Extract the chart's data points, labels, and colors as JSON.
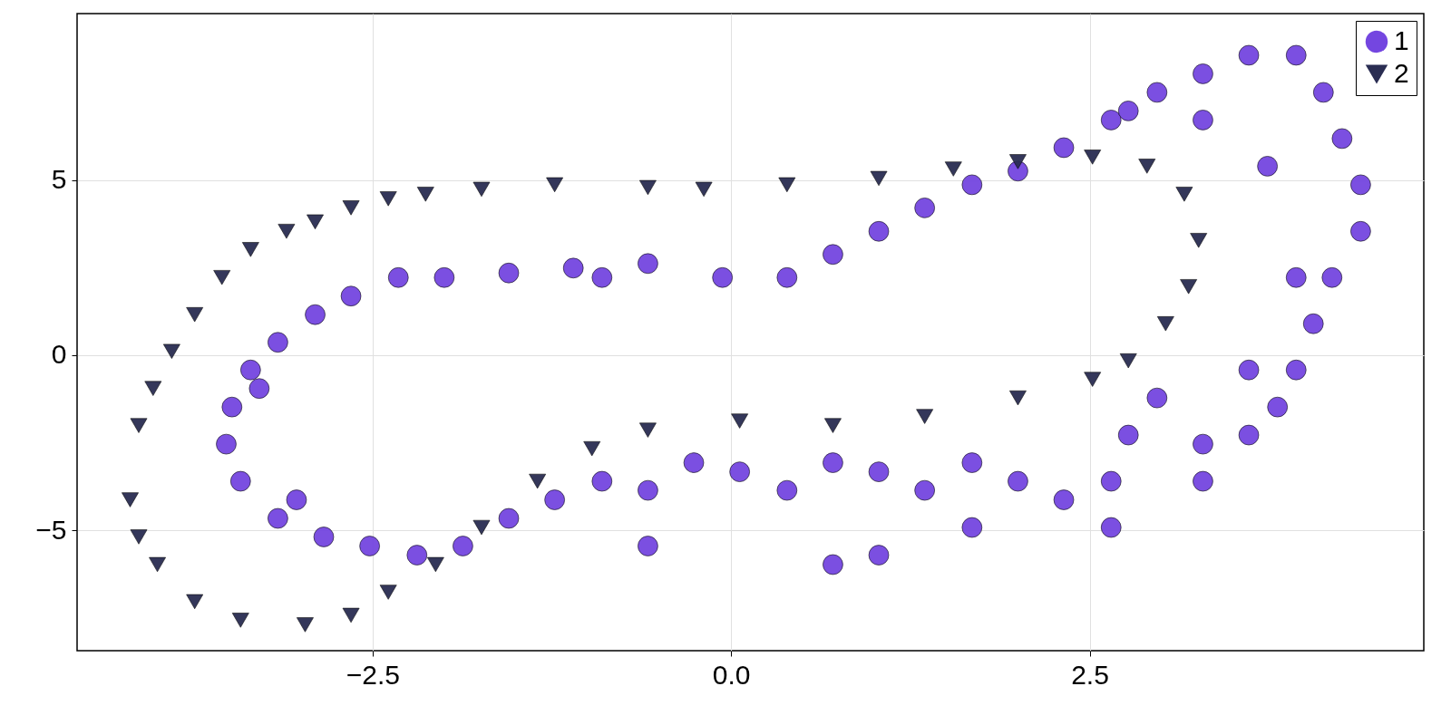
{
  "chart_data": {
    "type": "scatter",
    "xlim": [
      -4.56,
      4.83
    ],
    "ylim": [
      -8.44,
      9.76
    ],
    "xticks": [
      {
        "value": -2.5,
        "label": "−2.5"
      },
      {
        "value": 0,
        "label": "0.0"
      },
      {
        "value": 2.5,
        "label": "2.5"
      }
    ],
    "yticks": [
      {
        "value": -5,
        "label": "−5"
      },
      0,
      5
    ],
    "grid": true,
    "legend": "top right",
    "series": [
      {
        "name": "1",
        "color": "#7446e0",
        "marker": "circle",
        "x": [
          -3.35,
          -3.16,
          -2.9,
          -2.65,
          -2.32,
          -2.0,
          -1.55,
          -1.1,
          -0.58,
          -0.06,
          0.39,
          0.71,
          1.03,
          1.35,
          1.68,
          2.0,
          2.32,
          2.65,
          2.97,
          3.29,
          3.61,
          3.94,
          4.13,
          4.26,
          4.39,
          4.39,
          4.19,
          4.06,
          3.94,
          3.81,
          3.61,
          3.29,
          2.97,
          2.77,
          2.65,
          2.32,
          2.0,
          1.68,
          1.35,
          1.03,
          0.71,
          0.39,
          0.06,
          -0.26,
          -0.58,
          -0.9,
          -1.23,
          -1.55,
          -1.87,
          -2.19,
          -2.52,
          -2.84,
          -3.16,
          -3.42,
          -3.52,
          -3.48,
          -3.29,
          -3.03,
          -0.58,
          0.71,
          1.68,
          2.65,
          3.29,
          3.61,
          3.94,
          3.74,
          3.29,
          2.77,
          -0.9,
          1.03
        ],
        "values": [
          -0.42,
          0.37,
          1.16,
          1.69,
          2.22,
          2.22,
          2.35,
          2.49,
          2.62,
          2.22,
          2.22,
          2.88,
          3.54,
          4.21,
          4.87,
          5.26,
          5.93,
          6.72,
          7.51,
          8.04,
          8.57,
          8.57,
          7.51,
          6.19,
          4.87,
          3.54,
          2.22,
          0.9,
          -0.42,
          -1.48,
          -2.28,
          -2.54,
          -1.22,
          -2.28,
          -3.6,
          -4.13,
          -3.6,
          -3.07,
          -3.86,
          -3.33,
          -3.07,
          -3.86,
          -3.33,
          -3.07,
          -3.86,
          -3.6,
          -4.13,
          -4.66,
          -5.45,
          -5.71,
          -5.45,
          -5.19,
          -4.66,
          -3.6,
          -2.54,
          -1.48,
          -0.95,
          -4.13,
          -5.45,
          -5.98,
          -4.92,
          -4.92,
          -3.6,
          -0.42,
          2.22,
          5.4,
          6.72,
          6.98,
          2.22,
          -5.71
        ]
      },
      {
        "name": "2",
        "color": "#2a2d52",
        "marker": "triangle",
        "x": [
          -4.19,
          -4.13,
          -4.03,
          -3.9,
          -3.74,
          -3.55,
          -3.35,
          -3.1,
          -2.9,
          -2.65,
          -2.39,
          -2.13,
          -1.74,
          -1.23,
          -0.58,
          -0.19,
          0.39,
          1.03,
          1.55,
          2.0,
          2.52,
          2.9,
          3.16,
          3.26,
          3.19,
          3.03,
          2.77,
          2.52,
          2.0,
          1.35,
          0.71,
          0.06,
          -0.58,
          -0.97,
          -1.35,
          -1.74,
          -2.06,
          -2.39,
          -2.65,
          -2.97,
          -3.42,
          -3.74,
          -4.0,
          -4.13
        ],
        "values": [
          -4.13,
          -2.01,
          -0.95,
          0.11,
          1.16,
          2.22,
          3.02,
          3.54,
          3.81,
          4.21,
          4.47,
          4.6,
          4.74,
          4.87,
          4.79,
          4.74,
          4.87,
          5.05,
          5.32,
          5.53,
          5.66,
          5.4,
          4.6,
          3.28,
          1.96,
          0.9,
          -0.16,
          -0.69,
          -1.22,
          -1.75,
          -2.01,
          -1.88,
          -2.14,
          -2.67,
          -3.6,
          -4.92,
          -5.98,
          -6.77,
          -7.43,
          -7.7,
          -7.57,
          -7.04,
          -5.98,
          -5.19
        ]
      }
    ]
  }
}
